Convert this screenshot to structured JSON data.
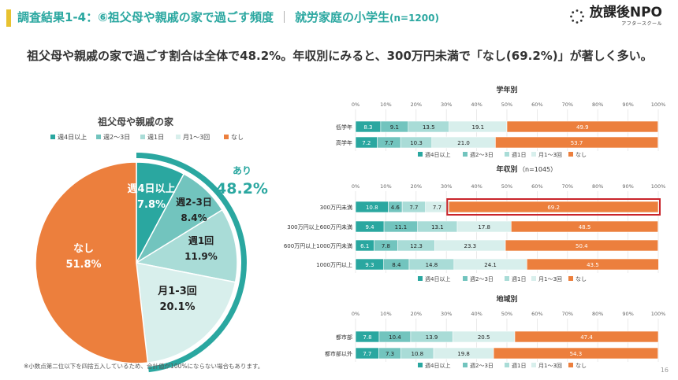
{
  "header": {
    "title_main": "調査結果1-4：⑥祖父母や親戚の家で過ごす頻度",
    "separator": "｜",
    "title_group": "就労家庭の小学生",
    "title_n": "(n=1200)",
    "logo_name": "放課後NPO",
    "logo_sub": "アフタースクール",
    "headline": "祖父母や親戚の家で過ごす割合は全体で48.2%。年収別にみると、300万円未満で「なし(69.2%)」が著しく多い。"
  },
  "footer": {
    "note": "※小数点第二位以下を四捨五入しているため、合計値が100%にならない場合もあります。",
    "page": "16"
  },
  "colors": {
    "c1": "#2aa7a0",
    "c2": "#72c4be",
    "c3": "#a9dcd7",
    "c4": "#d8efec",
    "c5": "#ec7f3d",
    "highlight": "#c9242b"
  },
  "chart_data": [
    {
      "type": "pie",
      "title": "祖父母や親戚の家",
      "legend": [
        "週4日以上",
        "週2〜3日",
        "週1日",
        "月1〜3回",
        "なし"
      ],
      "slices": [
        {
          "label": "週4日以上",
          "value": 7.8,
          "display": "週4日以上",
          "pct": "7.8%"
        },
        {
          "label": "週2-3日",
          "value": 8.4,
          "display": "週2-3日",
          "pct": "8.4%"
        },
        {
          "label": "週1日",
          "value": 11.9,
          "display": "週1回",
          "pct": "11.9%"
        },
        {
          "label": "月1-3回",
          "value": 20.1,
          "display": "月1-3回",
          "pct": "20.1%"
        },
        {
          "label": "なし",
          "value": 51.8,
          "display": "なし",
          "pct": "51.8%"
        }
      ],
      "ari_label": "あり",
      "ari_value": "48.2%"
    },
    {
      "type": "bar",
      "stacked": true,
      "horizontal": true,
      "axis_ticks": [
        "0%",
        "10%",
        "20%",
        "30%",
        "40%",
        "50%",
        "60%",
        "70%",
        "80%",
        "90%",
        "100%"
      ],
      "legend": [
        "週4日以上",
        "週2〜3日",
        "週1日",
        "月1〜3回",
        "なし"
      ],
      "groups": [
        {
          "title": "学年別",
          "rows": [
            {
              "label": "低学年",
              "values": [
                8.3,
                9.1,
                13.5,
                19.1,
                49.9
              ]
            },
            {
              "label": "高学年",
              "values": [
                7.2,
                7.7,
                10.3,
                21.0,
                53.7
              ]
            }
          ]
        },
        {
          "title": "年収別",
          "title_n": "（n=1045）",
          "rows": [
            {
              "label": "300万円未満",
              "values": [
                10.8,
                4.6,
                7.7,
                7.7,
                69.2
              ],
              "highlight_last": true
            },
            {
              "label": "300万円以上600万円未満",
              "values": [
                9.4,
                11.1,
                13.1,
                17.8,
                48.5
              ]
            },
            {
              "label": "600万円以上1000万円未満",
              "values": [
                6.1,
                7.8,
                12.3,
                23.3,
                50.4
              ]
            },
            {
              "label": "1000万円以上",
              "values": [
                9.3,
                8.4,
                14.8,
                24.1,
                43.5
              ]
            }
          ]
        },
        {
          "title": "地域別",
          "rows": [
            {
              "label": "都市部",
              "values": [
                7.8,
                10.4,
                13.9,
                20.5,
                47.4
              ]
            },
            {
              "label": "都市部以外",
              "values": [
                7.7,
                7.3,
                10.8,
                19.8,
                54.3
              ]
            }
          ]
        }
      ]
    }
  ]
}
